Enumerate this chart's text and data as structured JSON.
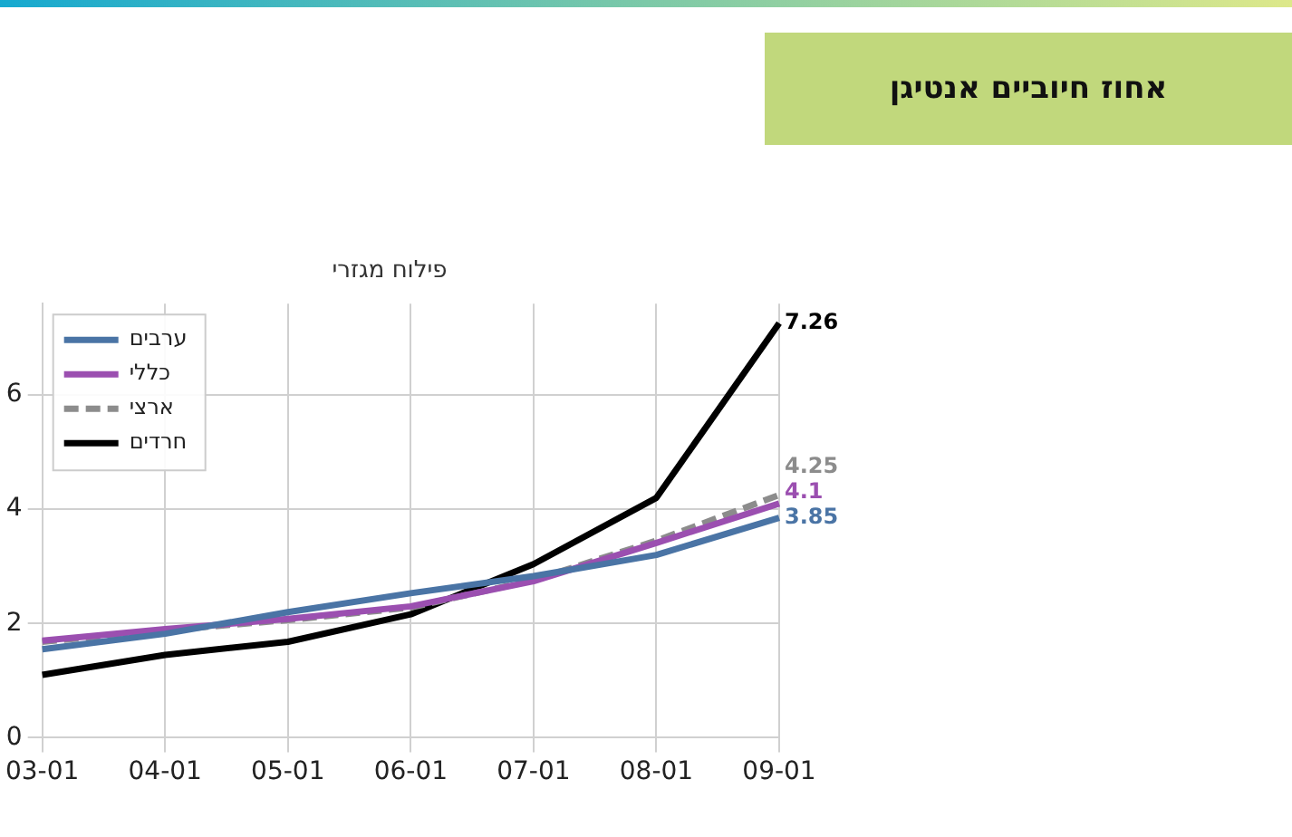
{
  "chart_data": {
    "type": "line",
    "title": "אחוז חיוביים אנטיגן",
    "subtitle": "פילוח מגזרי",
    "categories": [
      "03-01",
      "04-01",
      "05-01",
      "06-01",
      "07-01",
      "08-01",
      "09-01"
    ],
    "series": [
      {
        "name": "ערבים",
        "color": "#4a74a5",
        "values": [
          1.55,
          1.82,
          2.2,
          2.53,
          2.83,
          3.2,
          3.85
        ],
        "value_labels": [
          null,
          null,
          null,
          null,
          null,
          null,
          "3.85"
        ]
      },
      {
        "name": "כללי",
        "color": "#9b4fb0",
        "values": [
          1.7,
          1.9,
          2.08,
          2.3,
          2.74,
          3.41,
          4.1
        ],
        "value_labels": [
          null,
          null,
          null,
          null,
          null,
          null,
          "4.1"
        ]
      },
      {
        "name": "ארצי",
        "color": "#8c8c8c",
        "line_style": "dashed",
        "values": [
          1.68,
          1.88,
          2.06,
          2.28,
          2.76,
          3.45,
          4.25
        ],
        "value_labels": [
          null,
          null,
          null,
          null,
          null,
          null,
          "4.25"
        ]
      },
      {
        "name": "חרדים",
        "color": "#000000",
        "values": [
          1.1,
          1.45,
          1.68,
          2.16,
          3.04,
          4.2,
          7.26
        ],
        "value_labels": [
          null,
          null,
          null,
          null,
          null,
          null,
          "7.26"
        ]
      }
    ],
    "ylim": [
      0,
      7.6
    ],
    "yticks": [
      0,
      2,
      4,
      6
    ],
    "grid": true,
    "legend": "top left",
    "marker": "none"
  }
}
